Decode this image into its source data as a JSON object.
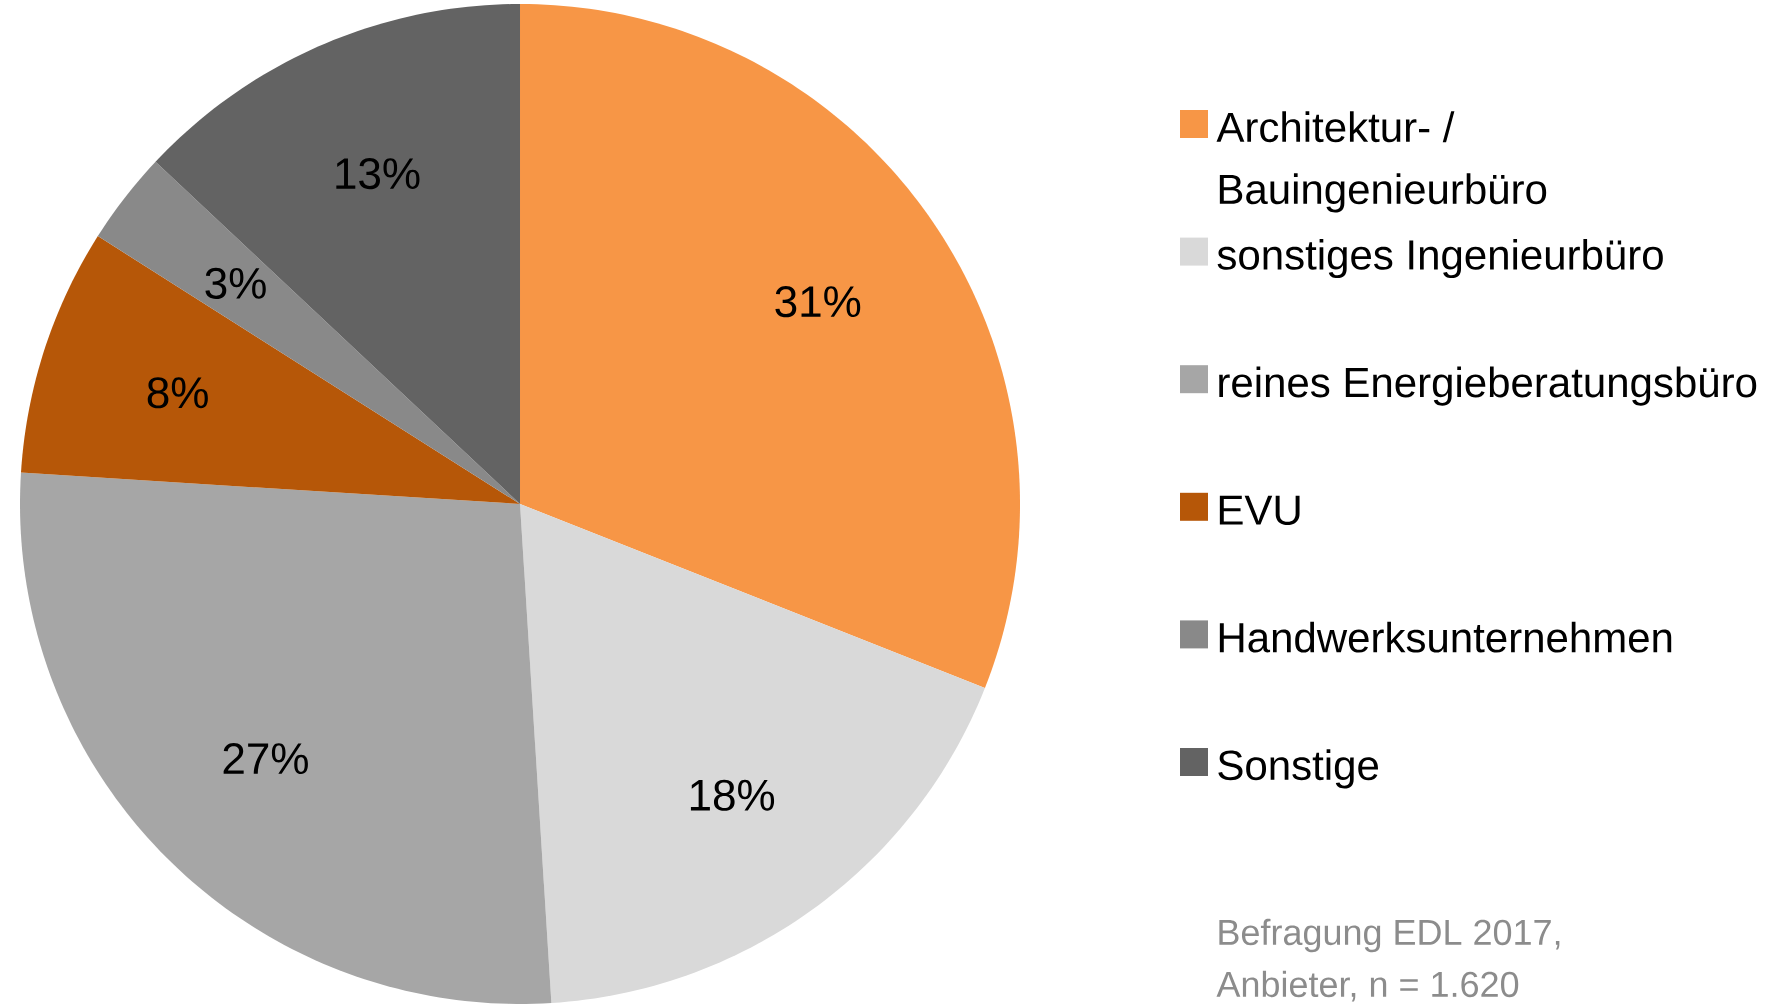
{
  "chart_data": {
    "type": "pie",
    "categories": [
      "Architektur- / Bauingenieurbüro",
      "sonstiges Ingenieurbüro",
      "reines Energieberatungsbüro",
      "EVU",
      "Handwerksunternehmen",
      "Sonstige"
    ],
    "values": [
      31,
      18,
      27,
      8,
      3,
      13
    ],
    "colors": [
      "#f79646",
      "#d9d9d9",
      "#a6a6a6",
      "#b65708",
      "#898989",
      "#636363"
    ],
    "value_labels": [
      "31%",
      "18%",
      "27%",
      "8%",
      "3%",
      "13%"
    ],
    "legend": "right",
    "annotations": [
      "Befragung EDL 2017, Anbieter, n = 1.620"
    ]
  }
}
